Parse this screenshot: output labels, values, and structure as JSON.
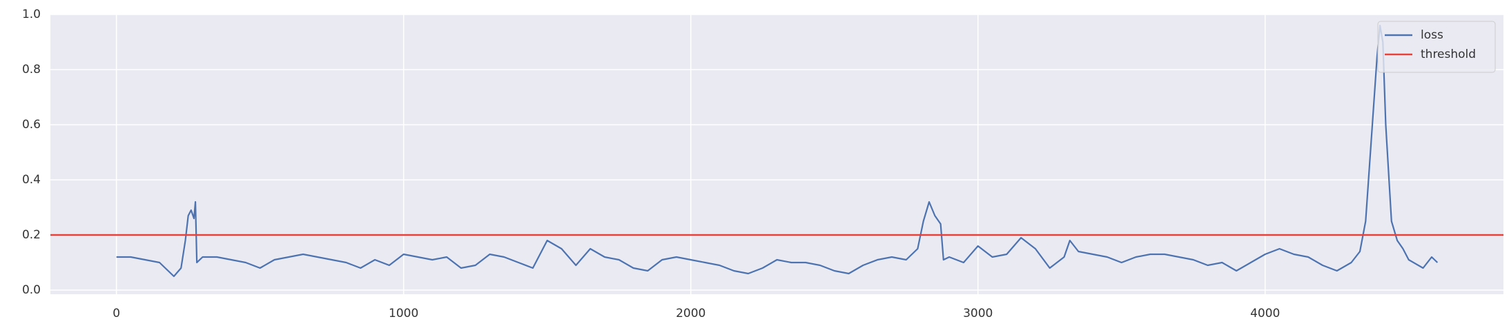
{
  "chart_data": {
    "type": "line",
    "x": [
      0,
      50,
      100,
      150,
      200,
      225,
      240,
      250,
      260,
      270,
      275,
      280,
      300,
      350,
      400,
      450,
      500,
      550,
      600,
      650,
      700,
      750,
      800,
      850,
      900,
      950,
      1000,
      1050,
      1100,
      1150,
      1200,
      1250,
      1300,
      1350,
      1400,
      1450,
      1500,
      1550,
      1600,
      1650,
      1700,
      1750,
      1800,
      1850,
      1900,
      1950,
      2000,
      2050,
      2100,
      2150,
      2200,
      2250,
      2300,
      2350,
      2400,
      2450,
      2500,
      2550,
      2600,
      2650,
      2700,
      2750,
      2790,
      2810,
      2830,
      2850,
      2870,
      2880,
      2900,
      2950,
      3000,
      3050,
      3100,
      3150,
      3200,
      3250,
      3300,
      3320,
      3350,
      3400,
      3450,
      3500,
      3550,
      3600,
      3650,
      3700,
      3750,
      3800,
      3850,
      3900,
      3950,
      4000,
      4050,
      4100,
      4150,
      4200,
      4250,
      4300,
      4330,
      4350,
      4370,
      4390,
      4400,
      4410,
      4420,
      4440,
      4460,
      4480,
      4500,
      4550,
      4580,
      4600
    ],
    "series": [
      {
        "name": "loss",
        "color": "#4c72b0",
        "values": [
          0.12,
          0.12,
          0.11,
          0.1,
          0.05,
          0.08,
          0.18,
          0.27,
          0.29,
          0.26,
          0.32,
          0.1,
          0.12,
          0.12,
          0.11,
          0.1,
          0.08,
          0.11,
          0.12,
          0.13,
          0.12,
          0.11,
          0.1,
          0.08,
          0.11,
          0.09,
          0.13,
          0.12,
          0.11,
          0.12,
          0.08,
          0.09,
          0.13,
          0.12,
          0.1,
          0.08,
          0.18,
          0.15,
          0.09,
          0.15,
          0.12,
          0.11,
          0.08,
          0.07,
          0.11,
          0.12,
          0.11,
          0.1,
          0.09,
          0.07,
          0.06,
          0.08,
          0.11,
          0.1,
          0.1,
          0.09,
          0.07,
          0.06,
          0.09,
          0.11,
          0.12,
          0.11,
          0.15,
          0.25,
          0.32,
          0.27,
          0.24,
          0.11,
          0.12,
          0.1,
          0.16,
          0.12,
          0.13,
          0.19,
          0.15,
          0.08,
          0.12,
          0.18,
          0.14,
          0.13,
          0.12,
          0.1,
          0.12,
          0.13,
          0.13,
          0.12,
          0.11,
          0.09,
          0.1,
          0.07,
          0.1,
          0.13,
          0.15,
          0.13,
          0.12,
          0.09,
          0.07,
          0.1,
          0.14,
          0.25,
          0.55,
          0.85,
          0.96,
          0.9,
          0.6,
          0.25,
          0.18,
          0.15,
          0.11,
          0.08,
          0.12,
          0.1
        ]
      }
    ],
    "hline": {
      "name": "threshold",
      "color": "#e8413a",
      "value": 0.2
    },
    "xlim": [
      -230,
      4830
    ],
    "xticks": [
      0,
      1000,
      2000,
      3000,
      4000
    ],
    "ylim": [
      -0.015,
      1.0
    ],
    "yticks": [
      {
        "value": 0,
        "label": "0.0"
      },
      {
        "value": 0.2,
        "label": "0.2"
      },
      {
        "value": 0.4,
        "label": "0.4"
      },
      {
        "value": 0.6,
        "label": "0.6"
      },
      {
        "value": 0.8,
        "label": "0.8"
      },
      {
        "value": 1.0,
        "label": "1.0"
      }
    ],
    "grid": true,
    "legend": "upper right"
  }
}
